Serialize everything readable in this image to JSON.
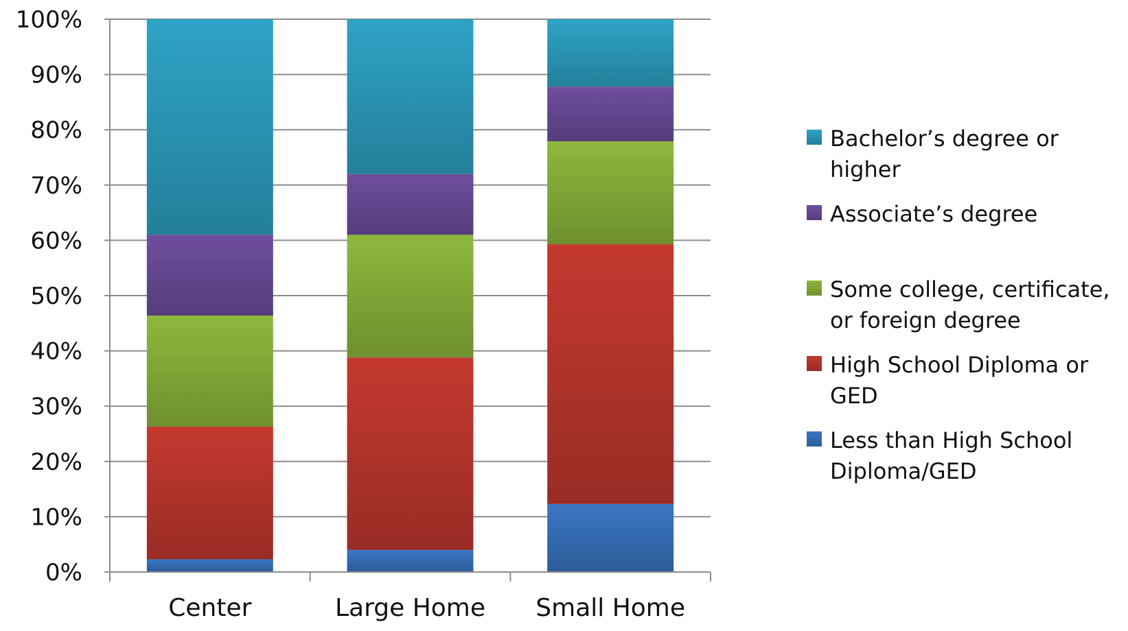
{
  "chart_data": {
    "type": "bar",
    "stacked": true,
    "percent": true,
    "title": "",
    "xlabel": "",
    "ylabel": "",
    "ylim": [
      0,
      100
    ],
    "y_ticks": [
      "0%",
      "10%",
      "20%",
      "30%",
      "40%",
      "50%",
      "60%",
      "70%",
      "80%",
      "90%",
      "100%"
    ],
    "grid": true,
    "legend_position": "right",
    "categories": [
      "Center",
      "Large Home",
      "Small Home"
    ],
    "series": [
      {
        "name": "Less than High School Diploma/GED",
        "name_lines": [
          "Less than High School",
          "Diploma/GED"
        ],
        "color": "#3a76c4",
        "values": [
          2.3,
          4.0,
          12.3
        ]
      },
      {
        "name": "High School Diploma or GED",
        "name_lines": [
          "High School Diploma or",
          "GED"
        ],
        "color": "#c4392f",
        "values": [
          24.0,
          34.8,
          47.0
        ]
      },
      {
        "name": "Some college, certificate, or foreign degree",
        "name_lines": [
          "Some college, certificate,",
          "or foreign degree"
        ],
        "color": "#8db83c",
        "values": [
          20.1,
          22.2,
          18.6
        ]
      },
      {
        "name": "Associate’s degree",
        "name_lines": [
          "Associate’s degree"
        ],
        "color": "#6e4e9e",
        "values": [
          14.6,
          11.0,
          9.9
        ]
      },
      {
        "name": "Bachelor’s degree or higher",
        "name_lines": [
          "Bachelor’s degree or",
          "higher"
        ],
        "color": "#2ea3c6",
        "values": [
          39.0,
          28.0,
          12.2
        ]
      }
    ]
  }
}
